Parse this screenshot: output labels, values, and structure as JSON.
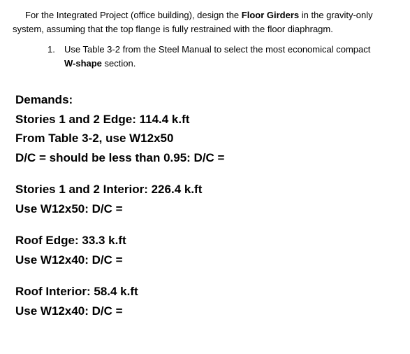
{
  "intro": {
    "prefix": "For the Integrated Project (office building), design the ",
    "bold1": "Floor Girders",
    "mid": " in the gravity-only system, assuming that the top flange is fully restrained with the floor diaphragm."
  },
  "listItem": {
    "number": "1.",
    "prefix": "Use Table 3-2 from the Steel Manual to select the most economical compact ",
    "bold": "W-shape",
    "suffix": " section."
  },
  "demands": {
    "heading": "Demands:",
    "groups": [
      {
        "lines": [
          "Stories 1 and 2 Edge: 114.4 k.ft",
          "From Table 3-2, use W12x50",
          "D/C = should be less than 0.95: D/C ="
        ]
      },
      {
        "lines": [
          "Stories 1 and 2 Interior: 226.4 k.ft",
          "Use W12x50: D/C ="
        ]
      },
      {
        "lines": [
          "Roof Edge: 33.3 k.ft",
          "Use W12x40: D/C ="
        ]
      },
      {
        "lines": [
          "Roof Interior: 58.4 k.ft",
          "Use W12x40: D/C ="
        ]
      }
    ]
  }
}
